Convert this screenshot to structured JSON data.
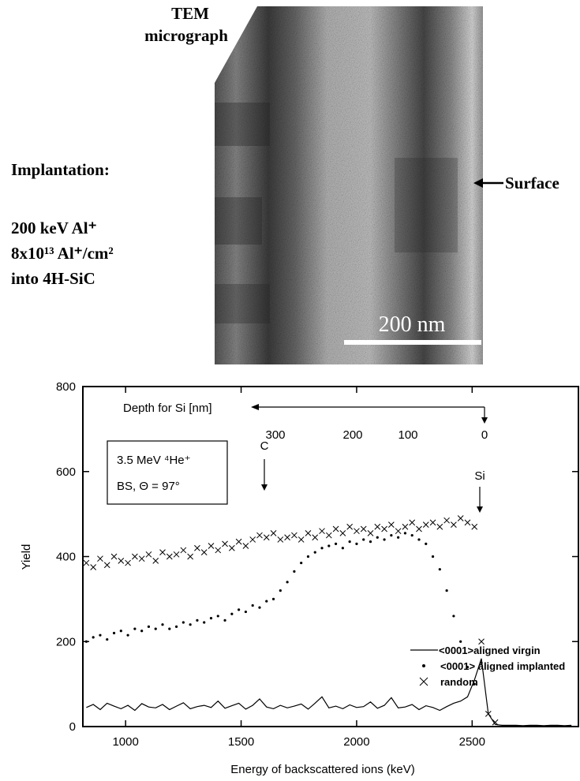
{
  "micrograph": {
    "title_lines": [
      "TEM",
      "micrograph"
    ],
    "implantation": {
      "heading": "Implantation:",
      "lines": [
        "200 keV Al⁺",
        "8x10¹³ Al⁺/cm²",
        "into 4H-SiC"
      ]
    },
    "surface_label": "Surface",
    "scale_bar": "200 nm"
  },
  "chart_data": {
    "type": "scatter",
    "xlabel": "Energy of backscattered ions (keV)",
    "ylabel": "Yield",
    "xlim": [
      815,
      2960
    ],
    "ylim": [
      0,
      800
    ],
    "xticks": [
      1000,
      1500,
      2000,
      2500
    ],
    "yticks": [
      0,
      200,
      400,
      600,
      800
    ],
    "inset": [
      "3.5 MeV ⁴He⁺",
      "BS, Θ = 97°"
    ],
    "annotations": [
      "C",
      "Si"
    ],
    "depth_axis": {
      "label": "Depth for Si [nm]",
      "ticks": [
        300,
        200,
        100,
        0
      ]
    },
    "x": [
      830,
      860,
      890,
      920,
      950,
      980,
      1010,
      1040,
      1070,
      1100,
      1130,
      1160,
      1190,
      1220,
      1250,
      1280,
      1310,
      1340,
      1370,
      1400,
      1430,
      1460,
      1490,
      1520,
      1550,
      1580,
      1610,
      1640,
      1670,
      1700,
      1730,
      1760,
      1790,
      1820,
      1850,
      1880,
      1910,
      1940,
      1970,
      2000,
      2030,
      2060,
      2090,
      2120,
      2150,
      2180,
      2210,
      2240,
      2270,
      2300,
      2330,
      2360,
      2390,
      2420,
      2450,
      2480,
      2510,
      2540,
      2570,
      2600,
      2630,
      2660,
      2690,
      2720,
      2750,
      2780,
      2810,
      2840,
      2870,
      2900,
      2930
    ],
    "series": [
      {
        "name": "<0001>aligned virgin",
        "style": "line",
        "color": "#000",
        "values": [
          45,
          52,
          40,
          55,
          48,
          42,
          50,
          38,
          54,
          46,
          44,
          52,
          40,
          48,
          56,
          42,
          47,
          50,
          45,
          60,
          43,
          49,
          55,
          41,
          50,
          65,
          46,
          42,
          50,
          44,
          48,
          53,
          41,
          55,
          70,
          44,
          48,
          42,
          51,
          45,
          47,
          58,
          43,
          50,
          68,
          44,
          46,
          52,
          40,
          49,
          45,
          38,
          47,
          55,
          60,
          70,
          110,
          160,
          30,
          5,
          3,
          3,
          3,
          2,
          3,
          3,
          2,
          3,
          3,
          2,
          3
        ]
      },
      {
        "name": "<0001> aligned implanted",
        "style": "dot",
        "color": "#000",
        "values": [
          200,
          210,
          215,
          205,
          220,
          225,
          215,
          230,
          225,
          235,
          230,
          240,
          230,
          235,
          245,
          240,
          250,
          245,
          255,
          260,
          250,
          265,
          275,
          270,
          285,
          280,
          295,
          300,
          320,
          340,
          365,
          385,
          400,
          410,
          420,
          425,
          430,
          420,
          435,
          430,
          440,
          435,
          445,
          440,
          450,
          445,
          455,
          450,
          440,
          430,
          400,
          370,
          320,
          260,
          200,
          140,
          100,
          150,
          null,
          null,
          null,
          null,
          null,
          null,
          null,
          null,
          null,
          null,
          null,
          null,
          null
        ]
      },
      {
        "name": "random",
        "style": "cross",
        "color": "#000",
        "values": [
          385,
          375,
          395,
          380,
          400,
          390,
          385,
          400,
          395,
          405,
          390,
          410,
          400,
          405,
          415,
          400,
          420,
          410,
          425,
          415,
          430,
          420,
          435,
          425,
          440,
          450,
          445,
          455,
          440,
          445,
          450,
          440,
          455,
          445,
          460,
          450,
          465,
          455,
          470,
          460,
          465,
          455,
          470,
          465,
          475,
          460,
          470,
          480,
          465,
          475,
          480,
          470,
          485,
          475,
          490,
          480,
          470,
          200,
          30,
          10,
          null,
          null,
          null,
          null,
          null,
          null,
          null,
          null,
          null,
          null,
          null
        ]
      }
    ]
  }
}
